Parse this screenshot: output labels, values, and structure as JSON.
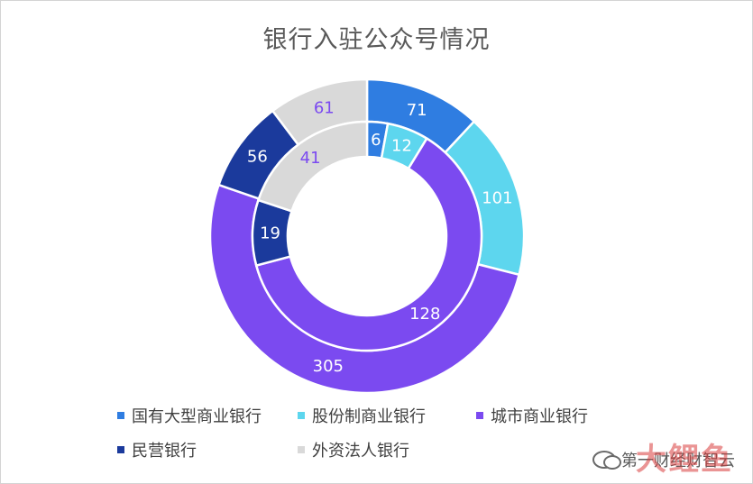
{
  "title": "银行入驻公众号情况",
  "watermark": {
    "text": "第一财经财智云",
    "logo_text": "大鲤鱼"
  },
  "colors": {
    "国有大型商业银行": "#2f7de1",
    "股份制商业银行": "#5dd6ee",
    "城市商业银行": "#7b4af0",
    "民营银行": "#1b3a9c",
    "外资法人银行": "#d9d9d9"
  },
  "chart_data": {
    "type": "pie",
    "subtype": "doughnut",
    "title": "银行入驻公众号情况",
    "categories": [
      "国有大型商业银行",
      "股份制商业银行",
      "城市商业银行",
      "民营银行",
      "外资法人银行"
    ],
    "series": [
      {
        "ring": "outer",
        "values": [
          71,
          101,
          305,
          56,
          61
        ]
      },
      {
        "ring": "inner",
        "values": [
          6,
          12,
          128,
          19,
          41
        ]
      }
    ],
    "legend_position": "bottom"
  },
  "legend": [
    {
      "label": "国有大型商业银行"
    },
    {
      "label": "股份制商业银行"
    },
    {
      "label": "城市商业银行"
    },
    {
      "label": "民营银行"
    },
    {
      "label": "外资法人银行"
    }
  ]
}
